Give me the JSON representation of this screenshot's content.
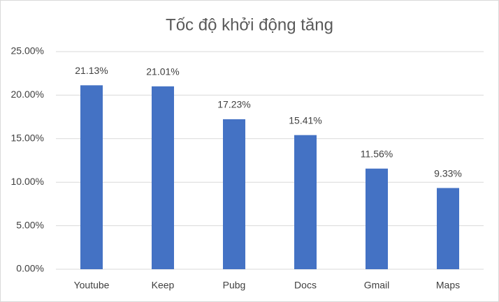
{
  "chart_data": {
    "type": "bar",
    "title": "Tốc độ khởi động tăng",
    "categories": [
      "Youtube",
      "Keep",
      "Pubg",
      "Docs",
      "Gmail",
      "Maps"
    ],
    "values": [
      21.13,
      21.01,
      17.23,
      15.41,
      11.56,
      9.33
    ],
    "value_labels": [
      "21.13%",
      "21.01%",
      "17.23%",
      "15.41%",
      "11.56%",
      "9.33%"
    ],
    "color": "#4472c4",
    "ylim": [
      0,
      25
    ],
    "yticks": [
      {
        "value": 0,
        "label": "0.00%"
      },
      {
        "value": 5,
        "label": "5.00%"
      },
      {
        "value": 10,
        "label": "10.00%"
      },
      {
        "value": 15,
        "label": "15.00%"
      },
      {
        "value": 20,
        "label": "20.00%"
      },
      {
        "value": 25,
        "label": "25.00%"
      }
    ],
    "grid": true
  }
}
